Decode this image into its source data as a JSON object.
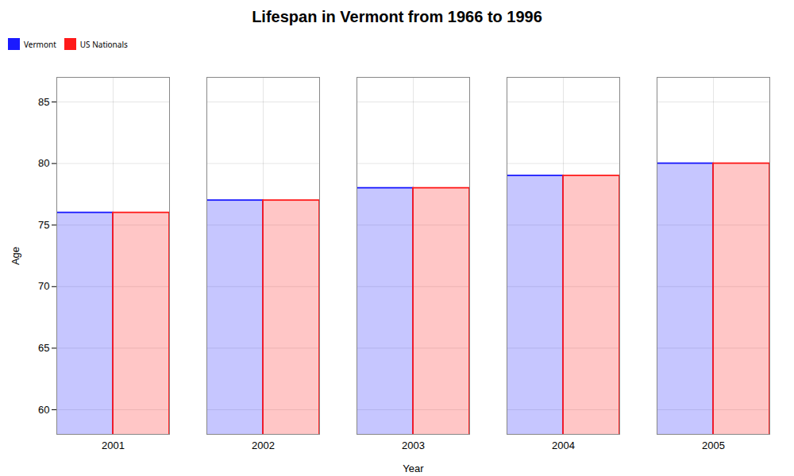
{
  "chart_data": {
    "type": "bar",
    "title": "Lifespan in Vermont from 1966 to 1996",
    "xlabel": "Year",
    "ylabel": "Age",
    "categories": [
      "2001",
      "2002",
      "2003",
      "2004",
      "2005"
    ],
    "series": [
      {
        "name": "Vermont",
        "color": "#1a1aff",
        "values": [
          76,
          77,
          78,
          79,
          80
        ]
      },
      {
        "name": "US Nationals",
        "color": "#ff1a1a",
        "values": [
          76,
          77,
          78,
          79,
          80
        ]
      }
    ],
    "ylim": [
      58,
      87
    ],
    "yticks": [
      60,
      65,
      70,
      75,
      80,
      85
    ],
    "grid": true,
    "legend": "top"
  }
}
